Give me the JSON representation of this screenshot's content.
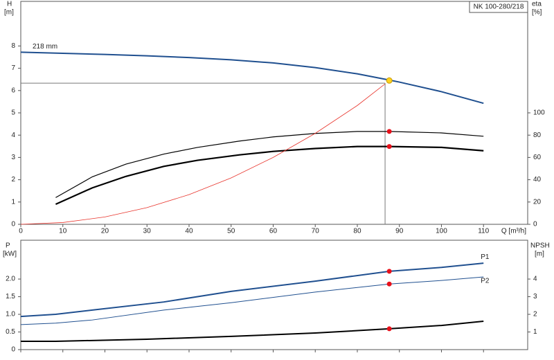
{
  "chart_data": [
    {
      "type": "line",
      "title": "NK 100-280/218",
      "annotation": "218 mm",
      "ylabel": "H",
      "yunit": "[m]",
      "y2label": "eta",
      "y2unit": "[%]",
      "xlabel": "Q [m³/h]",
      "xlim": [
        0,
        120.5
      ],
      "xticks": [
        0,
        10,
        20,
        30,
        40,
        50,
        60,
        70,
        80,
        90,
        100,
        110
      ],
      "ylim": [
        0,
        10
      ],
      "yticks": [
        0,
        1,
        2,
        3,
        4,
        5,
        6,
        7,
        8
      ],
      "y2lim": [
        0,
        200
      ],
      "y2ticks": [
        0,
        20,
        40,
        60,
        80,
        100
      ],
      "duty_point": {
        "x": 87.6,
        "y": 6.45
      },
      "reference_lines": {
        "x": 86.6,
        "y": 6.33
      },
      "series": [
        {
          "color": "#1f4f8f",
          "width": 2,
          "axis": "y",
          "x": [
            0,
            10,
            20,
            30,
            40,
            50,
            60,
            70,
            80,
            87.6,
            90,
            100,
            110
          ],
          "values": [
            7.72,
            7.67,
            7.62,
            7.56,
            7.48,
            7.38,
            7.24,
            7.03,
            6.75,
            6.47,
            6.38,
            5.95,
            5.43
          ]
        },
        {
          "color": "#000000",
          "width": 1.2,
          "axis": "y2",
          "marker": {
            "x": 87.6,
            "y": 83.3
          },
          "x": [
            8.3,
            17,
            25,
            34,
            42,
            52,
            60,
            70,
            80,
            87.6,
            100,
            110
          ],
          "values": [
            24,
            42.6,
            54,
            63,
            69,
            74.7,
            78.4,
            81.5,
            83.3,
            83.3,
            82,
            79
          ]
        },
        {
          "color": "#000000",
          "width": 2.2,
          "axis": "y2",
          "marker": {
            "x": 87.6,
            "y": 69.8
          },
          "x": [
            8.3,
            17,
            25,
            34,
            42,
            52,
            60,
            70,
            80,
            87.6,
            100,
            110
          ],
          "values": [
            18,
            32.7,
            43,
            52,
            57.4,
            62.3,
            65.4,
            68,
            69.8,
            69.8,
            69,
            66
          ]
        },
        {
          "color": "#e8322a",
          "width": 0.8,
          "axis": "y",
          "x": [
            0,
            10,
            20,
            30,
            40,
            50,
            60,
            70,
            80,
            86.6
          ],
          "values": [
            0,
            0.08,
            0.33,
            0.75,
            1.33,
            2.08,
            3.0,
            4.08,
            5.33,
            6.3
          ]
        }
      ]
    },
    {
      "type": "line",
      "ylabel": "P",
      "yunit": "[kW]",
      "y2label": "NPSH",
      "y2unit": "[m]",
      "xlim": [
        0,
        120.5
      ],
      "xticks": [
        0,
        10,
        20,
        30,
        40,
        50,
        60,
        70,
        80,
        90,
        100,
        110
      ],
      "ylim": [
        0,
        3.1
      ],
      "yticks": [
        0,
        0.5,
        {
          "value": 1,
          "label": "1.0"
        },
        1.5,
        {
          "value": 2,
          "label": "2.0"
        }
      ],
      "y2lim": [
        0,
        6.2
      ],
      "y2ticks": [
        1,
        2,
        3,
        4
      ],
      "series": [
        {
          "name": "P1",
          "color": "#1f4f8f",
          "width": 2,
          "axis": "y",
          "marker": {
            "x": 87.6,
            "y": 2.22
          },
          "x": [
            0,
            8.3,
            17,
            34,
            50,
            70,
            87.6,
            100,
            110
          ],
          "values": [
            0.94,
            1.0,
            1.12,
            1.35,
            1.65,
            1.94,
            2.22,
            2.33,
            2.45
          ]
        },
        {
          "name": "P2",
          "color": "#1f4f8f",
          "width": 1,
          "axis": "y",
          "marker": {
            "x": 87.6,
            "y": 1.86
          },
          "x": [
            0,
            8.3,
            17,
            34,
            50,
            70,
            87.6,
            100,
            110
          ],
          "values": [
            0.71,
            0.75,
            0.84,
            1.12,
            1.33,
            1.63,
            1.86,
            1.96,
            2.06
          ]
        },
        {
          "color": "#000000",
          "width": 2,
          "axis": "y2",
          "marker": {
            "x": 87.6,
            "y": 1.18
          },
          "x": [
            0,
            8.3,
            30,
            50,
            70,
            87.6,
            100,
            110
          ],
          "values": [
            0.47,
            0.47,
            0.59,
            0.75,
            0.94,
            1.18,
            1.37,
            1.61
          ]
        }
      ]
    }
  ]
}
